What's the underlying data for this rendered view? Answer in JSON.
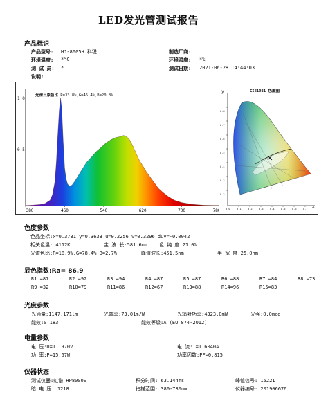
{
  "title": "LED发光管测试报告",
  "product": {
    "heading": "产品标识",
    "model_label": "产品型号:",
    "model_value": "HJ-8005H 科锐",
    "maker_label": "制造厂商:",
    "maker_value": "",
    "temp_label": "环境温度:",
    "temp_value": "*°C",
    "humidity_label": "环境湿度:",
    "humidity_value": "*%",
    "tester_label": "测 试 员:",
    "tester_value": "*",
    "date_label": "测试日期:",
    "date_value": "2021-06-28 14:44:03",
    "note_label": "说明:",
    "note_value": ""
  },
  "spectrum": {
    "annotation_label": "光谱三原色比",
    "annotation_value": "R=33.8%,G=45.4%,B=20.8%",
    "y_ticks": [
      "1.0",
      "0.5"
    ],
    "x_ticks": [
      "380",
      "460",
      "540",
      "620",
      "700",
      "780"
    ]
  },
  "chart_data": {
    "type": "area",
    "xlim": [
      380,
      780
    ],
    "ylim": [
      0,
      1.0
    ],
    "x": [
      380,
      395,
      410,
      420,
      430,
      435,
      440,
      443,
      446,
      449,
      451.5,
      454,
      457,
      460,
      463,
      466,
      470,
      475,
      480,
      487,
      495,
      505,
      515,
      525,
      535,
      545,
      555,
      565,
      575,
      581,
      587,
      593,
      600,
      607,
      613,
      620,
      628,
      636,
      644,
      652,
      662,
      672,
      685,
      700,
      720,
      745,
      780
    ],
    "y": [
      0.0,
      0.005,
      0.01,
      0.02,
      0.05,
      0.1,
      0.22,
      0.4,
      0.65,
      0.88,
      1.0,
      0.9,
      0.6,
      0.35,
      0.25,
      0.2,
      0.18,
      0.19,
      0.22,
      0.27,
      0.33,
      0.4,
      0.45,
      0.5,
      0.54,
      0.58,
      0.61,
      0.63,
      0.64,
      0.65,
      0.64,
      0.61,
      0.55,
      0.48,
      0.42,
      0.37,
      0.31,
      0.26,
      0.21,
      0.16,
      0.12,
      0.085,
      0.05,
      0.028,
      0.012,
      0.004,
      0.0
    ]
  },
  "cie": {
    "title": "CIE1931 色度图",
    "x_axis": "x",
    "y_axis": "y",
    "ticks": [
      "0.8",
      "0.7",
      "0.6",
      "0.5",
      "0.4",
      "0.3",
      "0.2",
      "0.1",
      "0.0",
      "0.1",
      "0.2",
      "0.3",
      "0.4",
      "0.5",
      "0.6",
      "0.7",
      "0.8"
    ],
    "point": {
      "x": 0.3731,
      "y": 0.3633
    }
  },
  "color": {
    "heading": "色度参数",
    "r1": "色品坐标:x=0.3731  y=0.3633     u=0.2256  v=0.3296    duv=-0.0042",
    "r2a": "相关色温: 4112K",
    "r2b": "主 波 长:581.6nm",
    "r2c": "色 纯 度:21.0%",
    "r3a": "光谱色比:R=18.9%,G=78.4%,B=2.7%",
    "r3b": "峰值波长:451.5nm",
    "r3c": "半 宽 度:25.0nm"
  },
  "cri": {
    "heading": "显色指数:Ra= 86.9",
    "row1": [
      "R1 =87",
      "R2 =92",
      "R3 =94",
      "R4 =87",
      "R5 =87",
      "R6 =88",
      "R7 =84",
      "R8 =73"
    ],
    "row2": [
      "R9 =32",
      "R10=79",
      "R11=86",
      "R12=67",
      "R13=88",
      "R14=96",
      "R15=83"
    ]
  },
  "photo": {
    "heading": "光度参数",
    "flux": "光通量:1147.171lm",
    "efficacy": "光效率:73.01m/W",
    "radiant": "光辐射功率:4323.0mW",
    "intensity": "光强:0.0mcd",
    "efficiency": "能效:0.183",
    "grade": "能效等级:A (EU 874-2012)"
  },
  "elec": {
    "heading": "电量参数",
    "voltage": "电    压:U=11.970V",
    "current": "电    流:I=1.6040A",
    "power": "功    率:P=15.67W",
    "pf": "功率因数:PF=0.815"
  },
  "instr": {
    "heading": "仪器状态",
    "device": "测试仪器:虹谱 HP8000S",
    "integ": "积分时间: 63.144ms",
    "peak_signal": "峰值信号: 15221",
    "dark": "暗 电 压: 1218",
    "scan": "扫描范围: 380-780nm",
    "serial": "仪器编号: 201906676"
  }
}
